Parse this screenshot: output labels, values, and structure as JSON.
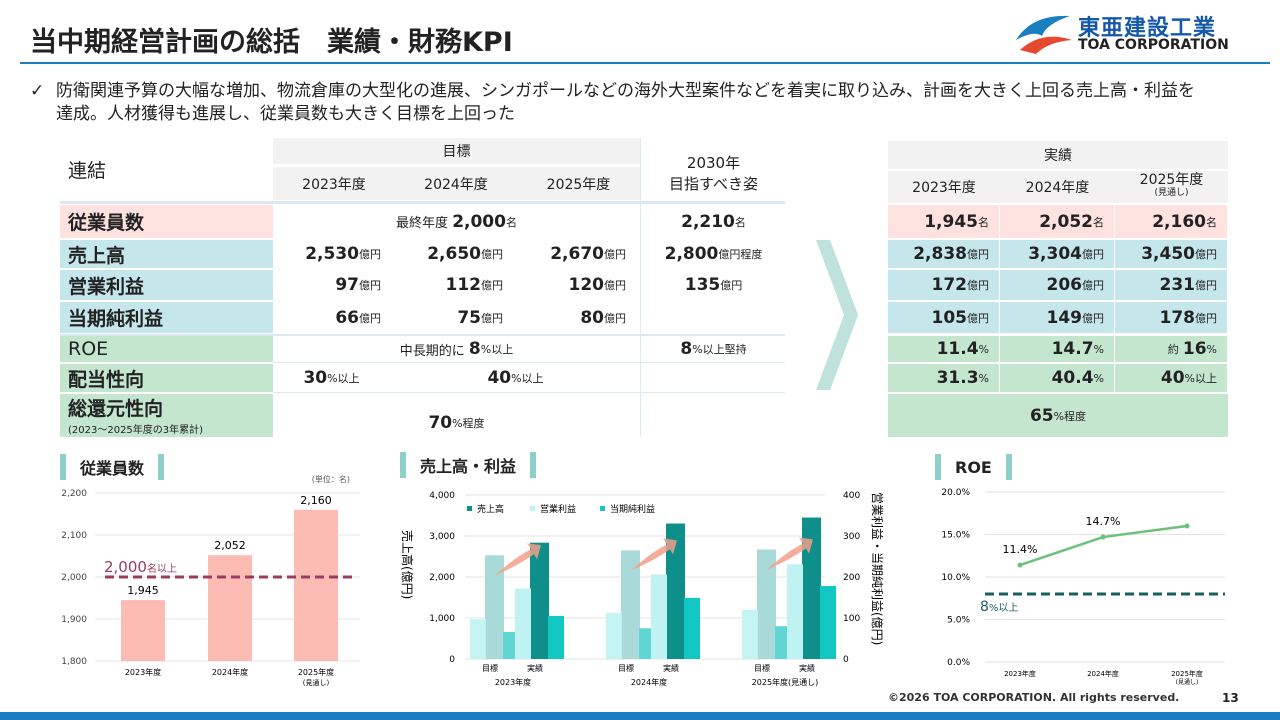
{
  "title": "当中期経営計画の総括　業績・財務KPI",
  "logo": {
    "jp": "東亜建設工業",
    "en": "TOA CORPORATION"
  },
  "bullet": {
    "icon": "check-icon",
    "text": "防衛関連予算の大幅な増加、物流倉庫の大型化の進展、シンガポールなどの海外大型案件などを着実に取り込み、計画を大きく上回る売上高・利益を達成。人材獲得も進展し、従業員数も大きく目標を上回った"
  },
  "target_table": {
    "corner": "連結",
    "group": "目標",
    "years": [
      "2023年度",
      "2024年度",
      "2025年度"
    ],
    "vision": [
      "2030年",
      "目指すべき姿"
    ],
    "rows": {
      "employees": {
        "label": "従業員数",
        "span_pre": "最終年度",
        "span_num": "2,000",
        "span_unit": "名",
        "vision_num": "2,210",
        "vision_unit": "名"
      },
      "sales": {
        "label": "売上高",
        "values": [
          "2,530",
          "2,650",
          "2,670"
        ],
        "unit": "億円",
        "vision_num": "2,800",
        "vision_unit": "億円程度"
      },
      "op": {
        "label": "営業利益",
        "values": [
          "97",
          "112",
          "120"
        ],
        "unit": "億円",
        "vision_num": "135",
        "vision_unit": "億円"
      },
      "net": {
        "label": "当期純利益",
        "values": [
          "66",
          "75",
          "80"
        ],
        "unit": "億円"
      },
      "roe": {
        "label": "ROE",
        "span_pre": "中長期的に",
        "span_num": "8",
        "span_unit": "%以上",
        "vision_num": "8",
        "vision_unit": "%以上堅持"
      },
      "payout": {
        "label": "配当性向",
        "v1_num": "30",
        "v1_unit": "%以上",
        "v2_num": "40",
        "v2_unit": "%以上"
      },
      "total": {
        "label": "総還元性向",
        "sub": "(2023～2025年度の3年累計)",
        "num": "70",
        "unit": "%程度"
      }
    }
  },
  "actual_table": {
    "group": "実績",
    "years": [
      "2023年度",
      "2024年度",
      "2025年度"
    ],
    "year_note": "(見通し)",
    "employees": [
      "1,945",
      "2,052",
      "2,160"
    ],
    "employees_unit": "名",
    "sales": [
      "2,838",
      "3,304",
      "3,450"
    ],
    "op": [
      "172",
      "206",
      "231"
    ],
    "net": [
      "105",
      "149",
      "178"
    ],
    "unit": "億円",
    "roe": [
      "11.4",
      "14.7",
      "16"
    ],
    "roe_prefix": "約",
    "pct": "%",
    "payout": [
      "31.3",
      "40.4",
      "40"
    ],
    "payout_last_unit": "%以上",
    "total": "65",
    "total_unit": "%程度"
  },
  "chart_data": [
    {
      "type": "bar",
      "title": "従業員数",
      "unit_note": "(単位：名)",
      "categories": [
        "2023年度",
        "2024年度",
        "2025年度"
      ],
      "category_notes": [
        "",
        "",
        "(見通し)"
      ],
      "values": [
        1945,
        2052,
        2160
      ],
      "value_labels": [
        "1,945",
        "2,052",
        "2,160"
      ],
      "ylim": [
        1800,
        2200
      ],
      "yticks": [
        "1,800",
        "1,900",
        "2,000",
        "2,100",
        "2,200"
      ],
      "target": {
        "value": 2000,
        "label_num": "2,000",
        "label_unit": "名以上",
        "color": "#9b3b5f"
      },
      "bar_color": "#fcbcb4"
    },
    {
      "type": "bar",
      "title": "売上高・利益",
      "ylabel": "売上高(億円)",
      "y2label": "営業利益・当期純利益(億円)",
      "ylim": [
        0,
        4000
      ],
      "y2lim": [
        0,
        400
      ],
      "yticks": [
        "0",
        "1,000",
        "2,000",
        "3,000",
        "4,000"
      ],
      "y2ticks": [
        "0",
        "100",
        "200",
        "300",
        "400"
      ],
      "legend": [
        "売上高",
        "営業利益",
        "当期純利益"
      ],
      "colors": {
        "sales": "#0e8f8a",
        "op": "#bff3f3",
        "net": "#12c6c3"
      },
      "groups": [
        {
          "year": "2023年度",
          "target": {
            "label": "目標",
            "sales": 2530,
            "op": 97,
            "net": 66
          },
          "actual": {
            "label": "実績",
            "sales": 2838,
            "op": 172,
            "net": 105
          }
        },
        {
          "year": "2024年度",
          "target": {
            "label": "目標",
            "sales": 2650,
            "op": 112,
            "net": 75
          },
          "actual": {
            "label": "実績",
            "sales": 3304,
            "op": 206,
            "net": 149
          }
        },
        {
          "year": "2025年度(見通し)",
          "target": {
            "label": "目標",
            "sales": 2670,
            "op": 120,
            "net": 80
          },
          "actual": {
            "label": "実績",
            "sales": 3450,
            "op": 231,
            "net": 178
          }
        }
      ]
    },
    {
      "type": "line",
      "title": "ROE",
      "categories": [
        "2023年度",
        "2024年度",
        "2025年度"
      ],
      "category_notes": [
        "",
        "",
        "(見通し)"
      ],
      "values": [
        11.4,
        14.7,
        16.0
      ],
      "value_labels": [
        "11.4%",
        "14.7%",
        ""
      ],
      "ylim": [
        0,
        20
      ],
      "yticks": [
        "0.0%",
        "5.0%",
        "10.0%",
        "15.0%",
        "20.0%"
      ],
      "target": {
        "value": 8,
        "label_num": "8",
        "label_unit": "%以上",
        "color": "#1a5e63"
      },
      "line_color": "#6cc07a"
    }
  ],
  "footer": {
    "copyright": "©2026 TOA CORPORATION. All rights reserved.",
    "page": "13"
  }
}
